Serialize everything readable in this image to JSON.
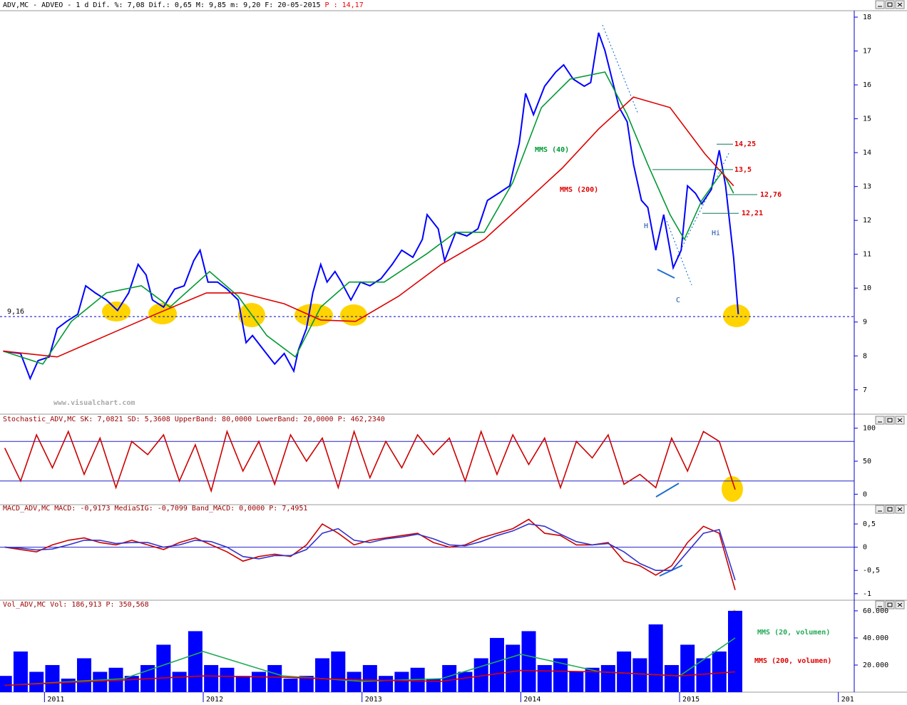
{
  "chart_data": [
    {
      "type": "line",
      "title": "ADV,MC - ADVEO -  1 d Dif. %: 7,08 Dif.: 0,65 M: 9,85 m: 9,20 F: 20-05-2015",
      "title_suffix": "P : 14,17",
      "watermark": "www.visualchart.com",
      "xlim": [
        2010.72,
        2016.1
      ],
      "ylim": [
        6.28,
        18.19
      ],
      "yticks": [
        7,
        8,
        9,
        10,
        11,
        12,
        13,
        14,
        15,
        16,
        17,
        18
      ],
      "reference": {
        "value": 9.16,
        "label": "9,16"
      },
      "levels": [
        {
          "value": 14.25,
          "label": "14,25"
        },
        {
          "value": 13.5,
          "label": "13,5"
        },
        {
          "value": 12.76,
          "label": "12,76"
        },
        {
          "value": 12.21,
          "label": "12,21"
        }
      ],
      "annotations": [
        "H",
        "C",
        "Hi"
      ],
      "series": [
        {
          "color": "#0000ff",
          "x": [
            2010.74,
            2010.85,
            2010.91,
            2010.96,
            2011.03,
            2011.08,
            2011.14,
            2011.21,
            2011.26,
            2011.32,
            2011.39,
            2011.46,
            2011.53,
            2011.59,
            2011.64,
            2011.68,
            2011.75,
            2011.82,
            2011.88,
            2011.94,
            2011.98,
            2012.03,
            2012.09,
            2012.15,
            2012.22,
            2012.27,
            2012.31,
            2012.38,
            2012.45,
            2012.51,
            2012.57,
            2012.6,
            2012.65,
            2012.69,
            2012.74,
            2012.78,
            2012.83,
            2012.87,
            2012.93,
            2012.99,
            2013.05,
            2013.12,
            2013.19,
            2013.25,
            2013.32,
            2013.38,
            2013.41,
            2013.48,
            2013.52,
            2013.59,
            2013.66,
            2013.73,
            2013.79,
            2013.86,
            2013.93,
            2013.99,
            2014.03,
            2014.08,
            2014.15,
            2014.22,
            2014.27,
            2014.33,
            2014.4,
            2014.44,
            2014.49,
            2014.53,
            2014.58,
            2014.62,
            2014.67,
            2014.71,
            2014.76,
            2014.8,
            2014.85,
            2014.9,
            2014.96,
            2015.01,
            2015.05,
            2015.1,
            2015.14,
            2015.2,
            2015.25,
            2015.29,
            2015.32,
            2015.34,
            2015.37
          ],
          "values": [
            8.14,
            8.07,
            7.33,
            7.86,
            7.97,
            8.81,
            9.02,
            9.23,
            10.07,
            9.86,
            9.65,
            9.34,
            9.86,
            10.7,
            10.39,
            9.65,
            9.44,
            9.97,
            10.07,
            10.81,
            11.12,
            10.18,
            10.18,
            9.97,
            9.65,
            8.39,
            8.6,
            8.18,
            7.76,
            8.07,
            7.55,
            8.18,
            8.81,
            9.86,
            10.7,
            10.18,
            10.49,
            10.18,
            9.65,
            10.18,
            10.07,
            10.28,
            10.7,
            11.12,
            10.91,
            11.44,
            12.17,
            11.75,
            10.81,
            11.65,
            11.54,
            11.75,
            12.59,
            12.8,
            13.02,
            14.28,
            15.75,
            15.12,
            15.96,
            16.38,
            16.59,
            16.17,
            15.96,
            16.07,
            17.54,
            17.01,
            16.07,
            15.33,
            14.91,
            13.65,
            12.59,
            12.38,
            11.12,
            12.17,
            10.6,
            11.12,
            13.02,
            12.8,
            12.49,
            12.91,
            14.07,
            13.02,
            11.75,
            10.91,
            9.23
          ]
        },
        {
          "name": "MMS (40)",
          "color": "#009933",
          "x": [
            2010.74,
            2010.99,
            2011.17,
            2011.39,
            2011.61,
            2011.79,
            2012.04,
            2012.22,
            2012.4,
            2012.58,
            2012.74,
            2012.92,
            2013.14,
            2013.41,
            2013.59,
            2013.77,
            2013.95,
            2014.13,
            2014.31,
            2014.53,
            2014.67,
            2014.8,
            2014.94,
            2015.03,
            2015.14,
            2015.27,
            2015.34
          ],
          "values": [
            8.14,
            7.76,
            9.02,
            9.86,
            10.07,
            9.44,
            10.49,
            9.76,
            8.6,
            7.97,
            9.44,
            10.18,
            10.18,
            11.02,
            11.65,
            11.65,
            13.12,
            15.33,
            16.17,
            16.38,
            15.12,
            13.65,
            12.17,
            11.44,
            12.59,
            13.44,
            12.8
          ]
        },
        {
          "name": "MMS (200)",
          "color": "#dd0000",
          "x": [
            2010.74,
            2011.08,
            2011.39,
            2011.7,
            2012.02,
            2012.24,
            2012.51,
            2012.74,
            2012.96,
            2013.23,
            2013.5,
            2013.77,
            2014.04,
            2014.26,
            2014.49,
            2014.71,
            2014.94,
            2015.16,
            2015.34
          ],
          "values": [
            8.14,
            7.97,
            8.6,
            9.23,
            9.86,
            9.86,
            9.54,
            9.06,
            9.02,
            9.76,
            10.7,
            11.44,
            12.59,
            13.54,
            14.7,
            15.64,
            15.33,
            13.96,
            13.02
          ]
        }
      ]
    },
    {
      "type": "line",
      "title": "Stochastic_ADV,MC SK: 7,0821 SD: 5,3608 UpperBand: 80,0000 LowerBand: 20,0000 P: 462,2340",
      "xlim": [
        2010.72,
        2016.1
      ],
      "ylim": [
        -18,
        104
      ],
      "yticks": [
        0,
        50,
        100
      ],
      "bands": [
        80,
        20
      ],
      "series": [
        {
          "color": "#cc0000",
          "x": [
            2010.75,
            2010.85,
            2010.95,
            2011.05,
            2011.15,
            2011.25,
            2011.35,
            2011.45,
            2011.55,
            2011.65,
            2011.75,
            2011.85,
            2011.95,
            2012.05,
            2012.15,
            2012.25,
            2012.35,
            2012.45,
            2012.55,
            2012.65,
            2012.75,
            2012.85,
            2012.95,
            2013.05,
            2013.15,
            2013.25,
            2013.35,
            2013.45,
            2013.55,
            2013.65,
            2013.75,
            2013.85,
            2013.95,
            2014.05,
            2014.15,
            2014.25,
            2014.35,
            2014.45,
            2014.55,
            2014.65,
            2014.75,
            2014.85,
            2014.95,
            2015.05,
            2015.15,
            2015.25,
            2015.35
          ],
          "values": [
            70,
            20,
            90,
            40,
            95,
            30,
            85,
            10,
            80,
            60,
            90,
            20,
            75,
            5,
            95,
            35,
            80,
            15,
            90,
            50,
            85,
            10,
            95,
            25,
            80,
            40,
            90,
            60,
            85,
            20,
            95,
            30,
            90,
            45,
            85,
            10,
            80,
            55,
            90,
            15,
            30,
            10,
            85,
            35,
            95,
            80,
            7.08
          ]
        }
      ]
    },
    {
      "type": "line",
      "title": "MACD_ADV,MC MACD: -0,9173 MediaSIG: -0,7099 Band_MACD: 0,0000 P: 7,4951",
      "xlim": [
        2010.72,
        2016.1
      ],
      "ylim": [
        -1.11,
        0.7
      ],
      "yticks": [
        {
          "value": 0.5,
          "label": "0,5"
        },
        0,
        {
          "value": -0.5,
          "label": "-0,5"
        },
        -1
      ],
      "bands": [
        0
      ],
      "series": [
        {
          "color": "#cc0000",
          "x": [
            2010.75,
            2010.85,
            2010.95,
            2011.05,
            2011.15,
            2011.25,
            2011.35,
            2011.45,
            2011.55,
            2011.65,
            2011.75,
            2011.85,
            2011.95,
            2012.05,
            2012.15,
            2012.25,
            2012.35,
            2012.45,
            2012.55,
            2012.65,
            2012.75,
            2012.85,
            2012.95,
            2013.05,
            2013.15,
            2013.25,
            2013.35,
            2013.45,
            2013.55,
            2013.65,
            2013.75,
            2013.85,
            2013.95,
            2014.05,
            2014.15,
            2014.25,
            2014.35,
            2014.45,
            2014.55,
            2014.65,
            2014.75,
            2014.85,
            2014.95,
            2015.05,
            2015.15,
            2015.25,
            2015.35
          ],
          "values": [
            0,
            -0.05,
            -0.1,
            0.05,
            0.15,
            0.2,
            0.1,
            0.05,
            0.15,
            0.05,
            -0.05,
            0.1,
            0.2,
            0.05,
            -0.1,
            -0.3,
            -0.2,
            -0.15,
            -0.2,
            0.05,
            0.5,
            0.3,
            0.05,
            0.15,
            0.2,
            0.25,
            0.3,
            0.1,
            0,
            0.05,
            0.2,
            0.3,
            0.4,
            0.6,
            0.3,
            0.25,
            0.05,
            0.05,
            0.1,
            -0.3,
            -0.4,
            -0.6,
            -0.4,
            0.1,
            0.45,
            0.3,
            -0.92
          ]
        },
        {
          "color": "#3333cc",
          "x": [
            2010.75,
            2010.85,
            2010.95,
            2011.05,
            2011.15,
            2011.25,
            2011.35,
            2011.45,
            2011.55,
            2011.65,
            2011.75,
            2011.85,
            2011.95,
            2012.05,
            2012.15,
            2012.25,
            2012.35,
            2012.45,
            2012.55,
            2012.65,
            2012.75,
            2012.85,
            2012.95,
            2013.05,
            2013.15,
            2013.25,
            2013.35,
            2013.45,
            2013.55,
            2013.65,
            2013.75,
            2013.85,
            2013.95,
            2014.05,
            2014.15,
            2014.25,
            2014.35,
            2014.45,
            2014.55,
            2014.65,
            2014.75,
            2014.85,
            2014.95,
            2015.05,
            2015.15,
            2015.25,
            2015.35
          ],
          "values": [
            0,
            -0.02,
            -0.06,
            -0.04,
            0.05,
            0.15,
            0.15,
            0.08,
            0.1,
            0.1,
            0,
            0.05,
            0.15,
            0.12,
            0,
            -0.2,
            -0.25,
            -0.18,
            -0.18,
            -0.05,
            0.3,
            0.4,
            0.15,
            0.1,
            0.18,
            0.22,
            0.28,
            0.18,
            0.05,
            0.03,
            0.12,
            0.25,
            0.35,
            0.5,
            0.45,
            0.28,
            0.12,
            0.05,
            0.08,
            -0.1,
            -0.35,
            -0.5,
            -0.5,
            -0.1,
            0.3,
            0.38,
            -0.71
          ]
        }
      ]
    },
    {
      "type": "bar",
      "title": "Vol_ADV,MC Vol: 186,913 P: 350,568",
      "xlim": [
        2010.72,
        2016.1
      ],
      "xticks": [
        2011,
        2012,
        2013,
        2014,
        2015,
        {
          "value": 2016,
          "label": "201"
        }
      ],
      "ylim": [
        0,
        61000
      ],
      "yticks": [
        {
          "value": 20000,
          "label": "20.000"
        },
        {
          "value": 40000,
          "label": "40.000"
        },
        {
          "value": 60000,
          "label": "60.000"
        }
      ],
      "series": [
        {
          "color": "#0000ff",
          "x": [
            2010.75,
            2010.85,
            2010.95,
            2011.05,
            2011.15,
            2011.25,
            2011.35,
            2011.45,
            2011.55,
            2011.65,
            2011.75,
            2011.85,
            2011.95,
            2012.05,
            2012.15,
            2012.25,
            2012.35,
            2012.45,
            2012.55,
            2012.65,
            2012.75,
            2012.85,
            2012.95,
            2013.05,
            2013.15,
            2013.25,
            2013.35,
            2013.45,
            2013.55,
            2013.65,
            2013.75,
            2013.85,
            2013.95,
            2014.05,
            2014.15,
            2014.25,
            2014.35,
            2014.45,
            2014.55,
            2014.65,
            2014.75,
            2014.85,
            2014.95,
            2015.05,
            2015.15,
            2015.25,
            2015.35
          ],
          "values": [
            12000,
            30000,
            15000,
            20000,
            10000,
            25000,
            15000,
            18000,
            12000,
            20000,
            35000,
            15000,
            45000,
            20000,
            18000,
            12000,
            15000,
            20000,
            10000,
            12000,
            25000,
            30000,
            15000,
            20000,
            12000,
            15000,
            18000,
            10000,
            20000,
            15000,
            25000,
            40000,
            35000,
            45000,
            20000,
            25000,
            15000,
            18000,
            20000,
            30000,
            25000,
            50000,
            20000,
            35000,
            25000,
            30000,
            60000
          ]
        },
        {
          "name": "MMS (20, volumen)",
          "type": "line",
          "color": "#22aa55",
          "x": [
            2010.75,
            2011.5,
            2012.0,
            2012.5,
            2013.0,
            2013.5,
            2014.0,
            2014.5,
            2015.0,
            2015.35
          ],
          "values": [
            5000,
            10000,
            30000,
            12000,
            8000,
            10000,
            28000,
            15000,
            12000,
            40000
          ]
        },
        {
          "name": "MMS (200, volumen)",
          "type": "line",
          "color": "#dd0000",
          "x": [
            2010.75,
            2011.5,
            2012.0,
            2012.5,
            2013.0,
            2013.5,
            2014.0,
            2014.5,
            2015.0,
            2015.35
          ],
          "values": [
            5000,
            9000,
            12000,
            11000,
            9000,
            8000,
            16000,
            15000,
            12000,
            15000
          ]
        }
      ]
    }
  ]
}
